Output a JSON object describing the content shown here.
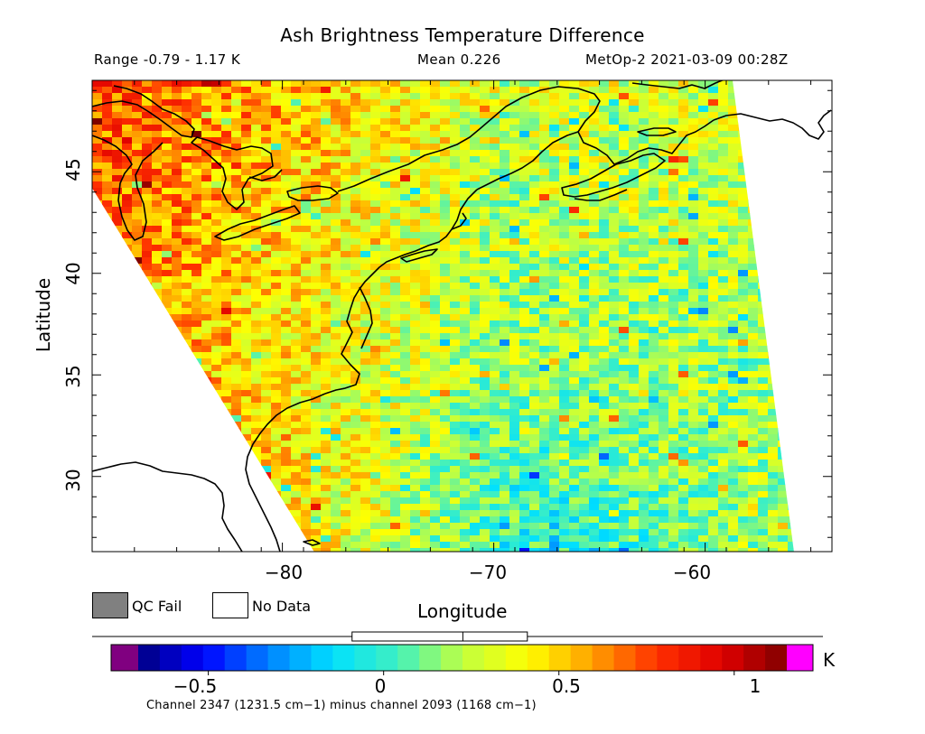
{
  "title": "Ash Brightness Temperature Difference",
  "header": {
    "range": "Range -0.79 - 1.17 K",
    "mean": "Mean 0.226",
    "source": "MetOp-2 2021-03-09 00:28Z"
  },
  "map": {
    "lon_range": [
      -89.0,
      -54.0
    ],
    "lat_range": [
      26.3,
      49.5
    ],
    "x_ticks": [
      -80,
      -70,
      -60
    ],
    "y_ticks": [
      30,
      35,
      40,
      45
    ],
    "x_tick_labels": [
      "−80",
      "−70",
      "−60"
    ],
    "y_tick_labels": [
      "30",
      "35",
      "40",
      "45"
    ],
    "xlabel": "Longitude",
    "ylabel": "Latitude",
    "swath_corners_lonlat": [
      [
        -89.0,
        49.5
      ],
      [
        -58.7,
        49.5
      ],
      [
        -55.8,
        26.3
      ],
      [
        -78.5,
        26.3
      ],
      [
        -89.0,
        44.2
      ]
    ],
    "field_mean": 0.226,
    "field_min": -0.79,
    "field_max": 1.17
  },
  "legend": {
    "qc_fail": "QC Fail",
    "no_data": "No Data",
    "qc_fail_color": "#808080",
    "no_data_color": "#ffffff"
  },
  "colorbar": {
    "min": -0.7,
    "max": 1.15,
    "ticks": [
      -0.5,
      0,
      0.5,
      1
    ],
    "tick_labels": [
      "−0.5",
      "0",
      "0.5",
      "1"
    ],
    "unit": "K",
    "under_color": "#800080",
    "over_color": "#ff00ff",
    "stops": [
      "#000080",
      "#0000ff",
      "#0080ff",
      "#00e0ff",
      "#40f0c0",
      "#c0ff40",
      "#ffff00",
      "#ffa000",
      "#ff3000",
      "#e00000",
      "#800000"
    ],
    "range_box": [
      -0.09,
      0.41
    ],
    "mean_marker": 0.226
  },
  "footnote": "Channel 2347 (1231.5 cm−1) minus channel 2093 (1168 cm−1)"
}
